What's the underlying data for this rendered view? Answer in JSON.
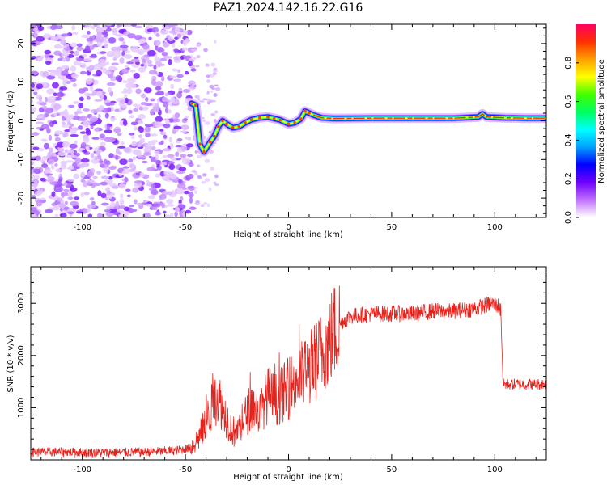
{
  "title": "PAZ1.2024.142.16.22.G16",
  "colorbar": {
    "label": "Normalized spectral amplitude",
    "ticks": [
      "0.0",
      "0.2",
      "0.4",
      "0.6",
      "0.8"
    ],
    "tick_values": [
      0.0,
      0.2,
      0.4,
      0.6,
      0.8
    ],
    "range": [
      0,
      1
    ],
    "colors": [
      "#ffffff",
      "#c070ff",
      "#7000ff",
      "#0000ff",
      "#00a0ff",
      "#00ffff",
      "#00ff60",
      "#40ff00",
      "#ffff00",
      "#ffa000",
      "#ff3000",
      "#ff0060"
    ]
  },
  "chart_data": [
    {
      "type": "heatmap",
      "title": "PAZ1.2024.142.16.22.G16",
      "xlabel": "Height of straight line (km)",
      "ylabel": "Frequency (Hz)",
      "xlim": [
        -125,
        125
      ],
      "ylim": [
        -25,
        25
      ],
      "xticks": [
        "-100",
        "-50",
        "0",
        "50",
        "100"
      ],
      "xtick_values": [
        -100,
        -50,
        0,
        50,
        100
      ],
      "yticks": [
        "-20",
        "-10",
        "0",
        "10",
        "20"
      ],
      "ytick_values": [
        -20,
        -10,
        0,
        10,
        20
      ],
      "noise_region_x": [
        -125,
        -46
      ],
      "ridge": [
        {
          "x": -47,
          "y": 4.5
        },
        {
          "x": -45,
          "y": 4.0
        },
        {
          "x": -43,
          "y": -6.0
        },
        {
          "x": -41,
          "y": -8.0
        },
        {
          "x": -38,
          "y": -5.5
        },
        {
          "x": -36,
          "y": -4.0
        },
        {
          "x": -34,
          "y": -1.5
        },
        {
          "x": -32,
          "y": 0.0
        },
        {
          "x": -30,
          "y": -0.8
        },
        {
          "x": -27,
          "y": -1.8
        },
        {
          "x": -24,
          "y": -1.5
        },
        {
          "x": -21,
          "y": -0.5
        },
        {
          "x": -18,
          "y": 0.3
        },
        {
          "x": -14,
          "y": 0.8
        },
        {
          "x": -10,
          "y": 1.0
        },
        {
          "x": -7,
          "y": 0.6
        },
        {
          "x": -4,
          "y": 0.2
        },
        {
          "x": 0,
          "y": -0.8
        },
        {
          "x": 3,
          "y": -0.5
        },
        {
          "x": 6,
          "y": 0.5
        },
        {
          "x": 8,
          "y": 2.5
        },
        {
          "x": 10,
          "y": 2.0
        },
        {
          "x": 12,
          "y": 1.5
        },
        {
          "x": 16,
          "y": 0.8
        },
        {
          "x": 22,
          "y": 0.6
        },
        {
          "x": 40,
          "y": 0.7
        },
        {
          "x": 60,
          "y": 0.7
        },
        {
          "x": 80,
          "y": 0.7
        },
        {
          "x": 92,
          "y": 1.0
        },
        {
          "x": 94,
          "y": 1.8
        },
        {
          "x": 96,
          "y": 1.0
        },
        {
          "x": 105,
          "y": 0.8
        },
        {
          "x": 115,
          "y": 0.7
        },
        {
          "x": 125,
          "y": 0.7
        }
      ]
    },
    {
      "type": "line",
      "xlabel": "Height of straight line (km)",
      "ylabel": "SNR (10 * v/v)",
      "xlim": [
        -125,
        125
      ],
      "ylim": [
        0,
        3700
      ],
      "xticks": [
        "-100",
        "-50",
        "0",
        "50",
        "100"
      ],
      "xtick_values": [
        -100,
        -50,
        0,
        50,
        100
      ],
      "yticks": [
        "1000",
        "2000",
        "3000"
      ],
      "ytick_values": [
        1000,
        2000,
        3000
      ],
      "series": [
        {
          "color": "#e8211b",
          "x": [
            -125,
            -110,
            -90,
            -70,
            -55,
            -48,
            -44,
            -40,
            -36,
            -34,
            -30,
            -26,
            -22,
            -18,
            -14,
            -10,
            -6,
            -2,
            2,
            6,
            10,
            14,
            18,
            22,
            26,
            30,
            40,
            50,
            60,
            70,
            80,
            90,
            95,
            98,
            102,
            103,
            104,
            110,
            125
          ],
          "y": [
            150,
            150,
            140,
            150,
            180,
            220,
            400,
            700,
            1150,
            1200,
            800,
            500,
            750,
            1050,
            900,
            1250,
            1150,
            1300,
            1450,
            1600,
            1750,
            1950,
            2150,
            2450,
            2650,
            2750,
            2800,
            2800,
            2800,
            2850,
            2850,
            2900,
            2950,
            3000,
            2950,
            2850,
            1450,
            1450,
            1450
          ]
        }
      ]
    }
  ]
}
